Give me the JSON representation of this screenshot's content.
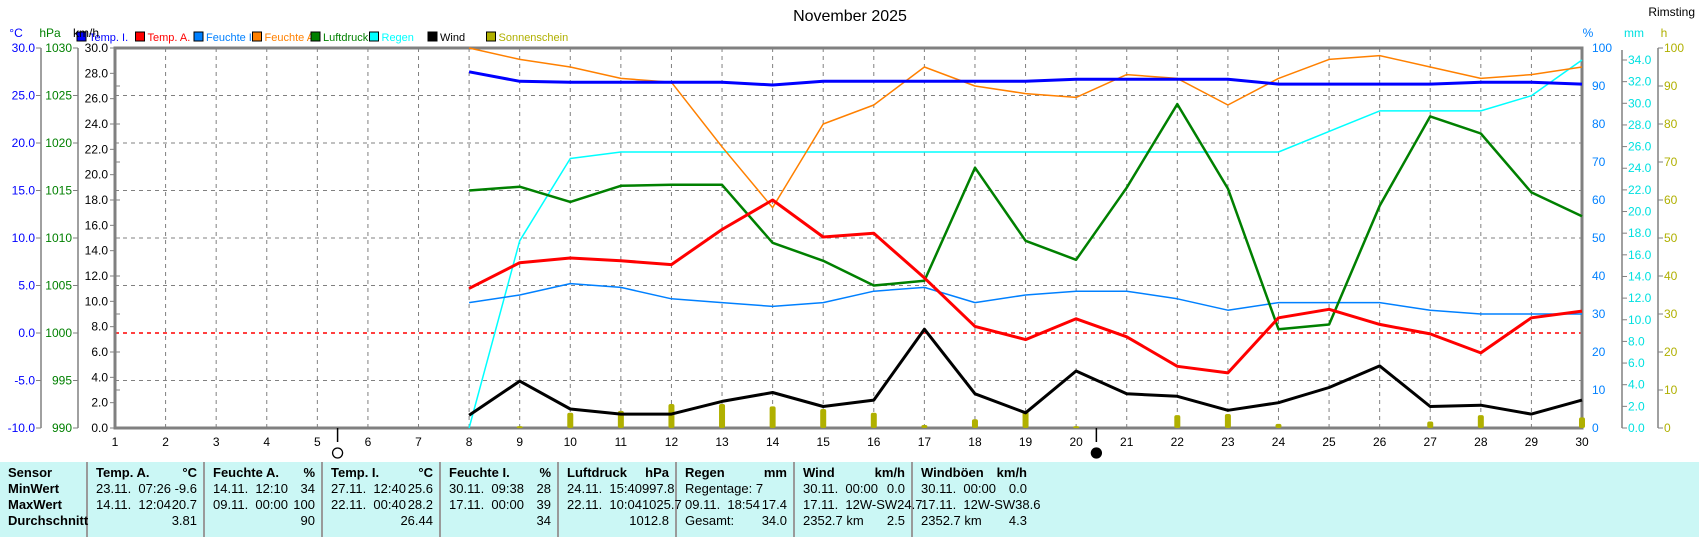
{
  "title": "November 2025",
  "station": "Rimsting",
  "legend": [
    {
      "label": "Temp. I.",
      "color": "#0000ff"
    },
    {
      "label": "Temp. A.",
      "color": "#ff0000"
    },
    {
      "label": "Feuchte I.",
      "color": "#0080ff"
    },
    {
      "label": "Feuchte A.",
      "color": "#ff8000"
    },
    {
      "label": "Luftdruck",
      "color": "#008000"
    },
    {
      "label": "Regen",
      "color": "#00ffff"
    },
    {
      "label": "Wind",
      "color": "#000000"
    },
    {
      "label": "Sonnenschein",
      "color": "#b0b000"
    }
  ],
  "chart_data": {
    "type": "line",
    "title": "November 2025",
    "x": [
      8,
      9,
      10,
      11,
      12,
      13,
      14,
      15,
      16,
      17,
      18,
      19,
      20,
      21,
      22,
      23,
      24,
      25,
      26,
      27,
      28,
      29,
      30
    ],
    "xticks": [
      1,
      2,
      3,
      4,
      5,
      6,
      7,
      8,
      9,
      10,
      11,
      12,
      13,
      14,
      15,
      16,
      17,
      18,
      19,
      20,
      21,
      22,
      23,
      24,
      25,
      26,
      27,
      28,
      29,
      30
    ],
    "xlim": [
      1,
      30
    ],
    "axes": {
      "temp": {
        "unit": "°C",
        "range": [
          -10,
          30
        ],
        "ticks": [
          "30.0",
          "25.0",
          "20.0",
          "15.0",
          "10.0",
          "5.0",
          "0.0",
          "-5.0",
          "-10.0"
        ],
        "color": "#0000ff"
      },
      "pressure": {
        "unit": "hPa",
        "range": [
          990,
          1030
        ],
        "ticks": [
          "1030",
          "1025",
          "1020",
          "1015",
          "1010",
          "1005",
          "1000",
          "995",
          "990"
        ],
        "color": "#008000"
      },
      "wind": {
        "unit": "km/h",
        "range": [
          0,
          30
        ],
        "ticks": [
          "30.0",
          "28.0",
          "26.0",
          "24.0",
          "22.0",
          "20.0",
          "18.0",
          "16.0",
          "14.0",
          "12.0",
          "10.0",
          "8.0",
          "6.0",
          "4.0",
          "2.0",
          "0.0"
        ],
        "color": "#000000"
      },
      "humidity": {
        "unit": "%",
        "range": [
          0,
          100
        ],
        "ticks": [
          "100",
          "90",
          "80",
          "70",
          "60",
          "50",
          "40",
          "30",
          "20",
          "10",
          "0"
        ],
        "color": "#0080ff"
      },
      "rain": {
        "unit": "mm",
        "range": [
          0,
          34
        ],
        "ticks": [
          "34.0",
          "32.0",
          "30.0",
          "28.0",
          "26.0",
          "24.0",
          "22.0",
          "20.0",
          "18.0",
          "16.0",
          "14.0",
          "12.0",
          "10.0",
          "8.0",
          "6.0",
          "4.0",
          "2.0",
          "0.0"
        ],
        "color": "#00e0e0"
      },
      "sun": {
        "unit": "h",
        "range": [
          0,
          100
        ],
        "ticks": [
          "100",
          "90",
          "80",
          "70",
          "60",
          "50",
          "40",
          "30",
          "20",
          "10",
          "0"
        ],
        "color": "#b0b000"
      }
    },
    "series": [
      {
        "name": "Temp. I.",
        "axis": "temp",
        "color": "#0000ff",
        "width": 3,
        "values": [
          27.5,
          26.5,
          26.4,
          26.4,
          26.4,
          26.4,
          26.1,
          26.5,
          26.5,
          26.5,
          26.5,
          26.5,
          26.7,
          26.7,
          26.7,
          26.7,
          26.2,
          26.2,
          26.2,
          26.2,
          26.4,
          26.4,
          26.2
        ]
      },
      {
        "name": "Temp. A.",
        "axis": "temp",
        "color": "#ff0000",
        "width": 3,
        "values": [
          4.7,
          7.4,
          7.9,
          7.6,
          7.2,
          10.9,
          14.0,
          10.1,
          10.5,
          5.8,
          0.7,
          -0.7,
          1.5,
          -0.4,
          -3.5,
          -4.2,
          1.6,
          2.5,
          0.9,
          -0.1,
          -2.1,
          1.6,
          2.3
        ]
      },
      {
        "name": "Feuchte I.",
        "axis": "humidity",
        "color": "#0080ff",
        "width": 1.5,
        "values": [
          33,
          35,
          38,
          37,
          34,
          33,
          32,
          33,
          36,
          37,
          33,
          35,
          36,
          36,
          34,
          31,
          33,
          33,
          33,
          31,
          30,
          30,
          30
        ]
      },
      {
        "name": "Feuchte A.",
        "axis": "humidity",
        "color": "#ff8000",
        "width": 1.5,
        "values": [
          100,
          97,
          95,
          92,
          91,
          74,
          58,
          80,
          85,
          95,
          90,
          88,
          87,
          93,
          92,
          85,
          92,
          97,
          98,
          95,
          92,
          93,
          95
        ]
      },
      {
        "name": "Luftdruck",
        "axis": "pressure",
        "color": "#008000",
        "width": 2.5,
        "values": [
          1015.0,
          1015.4,
          1013.8,
          1015.5,
          1015.6,
          1015.6,
          1009.5,
          1007.6,
          1005.0,
          1005.5,
          1017.4,
          1009.7,
          1007.7,
          1015.3,
          1024.1,
          1015.2,
          1000.4,
          1000.9,
          1013.4,
          1022.8,
          1021.0,
          1014.8,
          1012.3
        ]
      },
      {
        "name": "Regen",
        "axis": "rain",
        "color": "#00ffff",
        "width": 1.5,
        "values": [
          0,
          17.3,
          24.9,
          25.5,
          25.5,
          25.5,
          25.5,
          25.5,
          25.5,
          25.5,
          25.5,
          25.5,
          25.5,
          25.5,
          25.5,
          25.5,
          25.5,
          27.4,
          29.3,
          29.3,
          29.3,
          30.7,
          34.0
        ]
      },
      {
        "name": "Wind",
        "axis": "wind",
        "color": "#000000",
        "width": 3,
        "values": [
          1.0,
          3.7,
          1.5,
          1.1,
          1.1,
          2.1,
          2.8,
          1.7,
          2.2,
          7.8,
          2.7,
          1.2,
          4.5,
          2.7,
          2.5,
          1.4,
          2.0,
          3.2,
          4.9,
          1.7,
          1.8,
          1.1,
          2.2
        ]
      }
    ],
    "sunshine": {
      "name": "Sonnenschein",
      "axis": "sun",
      "color": "#b0b000",
      "days": [
        9,
        10,
        11,
        12,
        13,
        14,
        15,
        16,
        17,
        18,
        19,
        20,
        22,
        23,
        24,
        27,
        28,
        30
      ],
      "values": [
        0.5,
        4.0,
        4.5,
        6.3,
        6.3,
        5.7,
        5.0,
        4.0,
        0.8,
        2.3,
        4.3,
        0.5,
        3.4,
        3.7,
        1.1,
        1.7,
        3.4,
        2.8
      ]
    },
    "moon_phases": [
      {
        "day": 5.4,
        "phase": "full"
      },
      {
        "day": 20.4,
        "phase": "new"
      }
    ],
    "grid": true
  },
  "table": {
    "sensor_labels": [
      "Sensor",
      "MinWert",
      "MaxWert",
      "Durchschnitt"
    ],
    "columns": [
      {
        "name": "Temp. A.",
        "unit": "°C",
        "rows": [
          [
            "23.11.  07:26",
            "-9.6"
          ],
          [
            "14.11.  12:04",
            "20.7"
          ],
          [
            "",
            "3.81"
          ]
        ]
      },
      {
        "name": "Feuchte A.",
        "unit": "%",
        "rows": [
          [
            "14.11.  12:10",
            "34"
          ],
          [
            "09.11.  00:00",
            "100"
          ],
          [
            "",
            "90"
          ]
        ]
      },
      {
        "name": "Temp. I.",
        "unit": "°C",
        "rows": [
          [
            "27.11.  12:40",
            "25.6"
          ],
          [
            "22.11.  00:40",
            "28.2"
          ],
          [
            "",
            "26.44"
          ]
        ]
      },
      {
        "name": "Feuchte I.",
        "unit": "%",
        "rows": [
          [
            "30.11.  09:38",
            "28"
          ],
          [
            "17.11.  00:00",
            "39"
          ],
          [
            "",
            "34"
          ]
        ]
      },
      {
        "name": "Luftdruck",
        "unit": "hPa",
        "rows": [
          [
            "24.11.  15:40",
            "997.8"
          ],
          [
            "22.11.  10:04",
            "1025.7"
          ],
          [
            "",
            "1012.8"
          ]
        ]
      },
      {
        "name": "Regen",
        "unit": "mm",
        "rows": [
          [
            "Regentage: 7",
            ""
          ],
          [
            "09.11.  18:54",
            "17.4"
          ],
          [
            "Gesamt:",
            "34.0"
          ]
        ]
      },
      {
        "name": "Wind",
        "unit": "km/h",
        "rows": [
          [
            "30.11.  00:00",
            "0.0"
          ],
          [
            "17.11.  12W-SW",
            "24.7"
          ],
          [
            "2352.7 km",
            "2.5"
          ]
        ]
      },
      {
        "name": "Windböen",
        "unit": "km/h",
        "rows": [
          [
            "30.11.  00:00",
            "0.0"
          ],
          [
            "17.11.  12W-SW",
            "38.6"
          ],
          [
            "2352.7 km",
            "4.3"
          ]
        ]
      }
    ]
  }
}
